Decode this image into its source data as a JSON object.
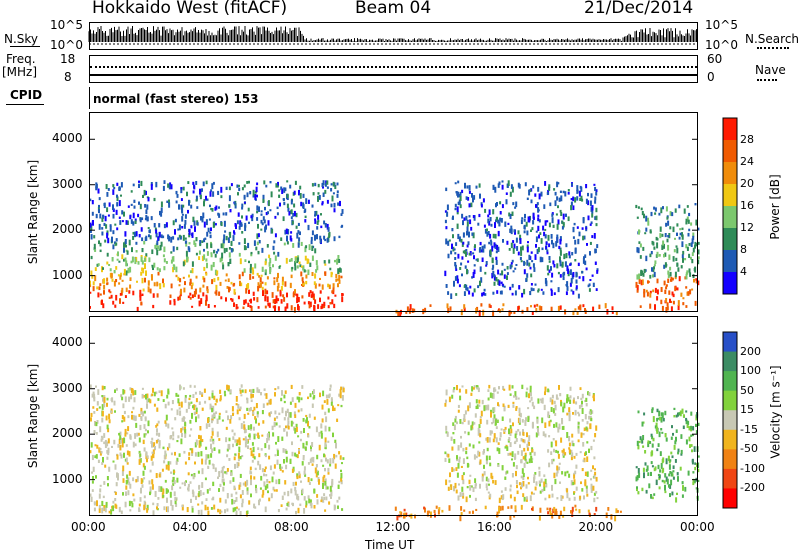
{
  "header": {
    "station": "Hokkaido West (fitACF)",
    "beam": "Beam 04",
    "date": "21/Dec/2014"
  },
  "top_panels": {
    "nsky_label": "N.Sky",
    "nsearch_label": "N.Search",
    "noise_ticks_left": [
      "10^5",
      "10^0"
    ],
    "noise_ticks_right": [
      "10^5",
      "10^0"
    ],
    "freq_label": "Freq.",
    "freq_unit": "[MHz]",
    "freq_ticks": [
      "18",
      "8"
    ],
    "nave_label": "Nave",
    "nave_ticks": [
      "60",
      "0"
    ],
    "cpid_label": "CPID",
    "cpid_text": "normal (fast stereo) 153"
  },
  "chart_data": [
    {
      "type": "heatmap",
      "name": "power",
      "ylabel": "Slant Range [km]",
      "yticks": [
        "1000",
        "2000",
        "3000",
        "4000"
      ],
      "ylim": [
        200,
        4600
      ],
      "colorbar_label": "Power [dB]",
      "colorbar_ticks": [
        "4",
        "8",
        "12",
        "16",
        "20",
        "24",
        "28"
      ],
      "colorbar_colors": [
        "#1400ff",
        "#1e5ab4",
        "#2e8b57",
        "#7cc86e",
        "#f0c814",
        "#f08c0a",
        "#f05a00",
        "#ff1a00"
      ],
      "regions": [
        {
          "t0": 0,
          "t1": 10,
          "r0": 300,
          "r1": 700,
          "level": 7
        },
        {
          "t0": 0,
          "t1": 10,
          "r0": 700,
          "r1": 1100,
          "level": 5
        },
        {
          "t0": 0,
          "t1": 10,
          "r0": 1100,
          "r1": 1500,
          "level": 3
        },
        {
          "t0": 0,
          "t1": 9,
          "r0": 1500,
          "r1": 1800,
          "level": 2
        },
        {
          "t0": 0,
          "t1": 10,
          "r0": 1800,
          "r1": 3100,
          "level": 1
        },
        {
          "t0": 12,
          "t1": 21,
          "r0": 200,
          "r1": 400,
          "level": 6
        },
        {
          "t0": 21.5,
          "t1": 24,
          "r0": 300,
          "r1": 1000,
          "level": 6
        },
        {
          "t0": 21.5,
          "t1": 24,
          "r0": 1000,
          "r1": 2600,
          "level": 2
        },
        {
          "t0": 14,
          "t1": 20,
          "r0": 600,
          "r1": 3100,
          "level": 1
        }
      ]
    },
    {
      "type": "heatmap",
      "name": "velocity",
      "ylabel": "Slant Range [km]",
      "yticks": [
        "1000",
        "2000",
        "3000",
        "4000"
      ],
      "ylim": [
        200,
        4600
      ],
      "xlabel": "Time UT",
      "xticks": [
        "00:00",
        "04:00",
        "08:00",
        "12:00",
        "16:00",
        "20:00",
        "00:00"
      ],
      "xlim": [
        0,
        24
      ],
      "colorbar_label": "Velocity [m s⁻¹]",
      "colorbar_ticks": [
        "200",
        "100",
        "50",
        "15",
        "-15",
        "-50",
        "-100",
        "-200"
      ],
      "colorbar_colors": [
        "#2850c8",
        "#3c8c64",
        "#50b450",
        "#82d23c",
        "#c8c8b4",
        "#f0b41e",
        "#f08214",
        "#f04614",
        "#ff0000"
      ],
      "regions": [
        {
          "t0": 0,
          "t1": 10,
          "r0": 300,
          "r1": 1900,
          "level": 4
        },
        {
          "t0": 0,
          "t1": 10,
          "r0": 1900,
          "r1": 3100,
          "level": 4
        },
        {
          "t0": 12,
          "t1": 21,
          "r0": 200,
          "r1": 450,
          "level": 6
        },
        {
          "t0": 21.5,
          "t1": 24,
          "r0": 600,
          "r1": 2600,
          "level": 2
        },
        {
          "t0": 14,
          "t1": 20,
          "r0": 600,
          "r1": 3100,
          "level": 4
        }
      ]
    }
  ]
}
